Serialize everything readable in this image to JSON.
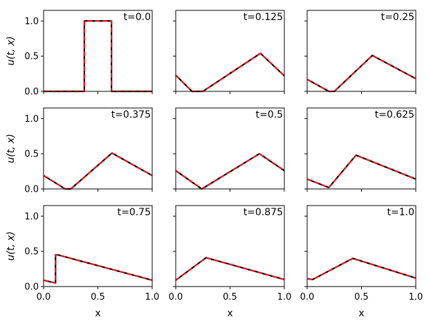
{
  "chart_data": {
    "type": "line",
    "layout": "3x3 grid of subplots, shared x and y axes",
    "xlabel": "x",
    "ylabel": "u(t, x)",
    "xlim": [
      0.0,
      1.0
    ],
    "ylim": [
      0.0,
      1.15
    ],
    "xticks": [
      "0.0",
      "0.5",
      "1.0"
    ],
    "yticks": [
      "0.0",
      "0.5",
      "1.0"
    ],
    "grid": false,
    "series_styles": [
      {
        "role": "solid black line",
        "color": "#000000"
      },
      {
        "role": "dashed red line",
        "color": "#e8141a"
      }
    ],
    "panels": [
      {
        "title": "t=0.0",
        "x": [
          0.0,
          0.375,
          0.375,
          0.625,
          0.625,
          1.0
        ],
        "y": [
          0.0,
          0.0,
          1.0,
          1.0,
          0.0,
          0.0
        ]
      },
      {
        "title": "t=0.125",
        "x": [
          0.0,
          0.15,
          0.25,
          0.78,
          1.0
        ],
        "y": [
          0.23,
          0.0,
          0.0,
          0.54,
          0.22
        ]
      },
      {
        "title": "t=0.25",
        "x": [
          0.0,
          0.2,
          0.25,
          0.6,
          1.0
        ],
        "y": [
          0.17,
          0.0,
          0.0,
          0.51,
          0.18
        ]
      },
      {
        "title": "t=0.375",
        "x": [
          0.0,
          0.2,
          0.25,
          0.63,
          1.0
        ],
        "y": [
          0.19,
          0.0,
          0.0,
          0.51,
          0.19
        ]
      },
      {
        "title": "t=0.5",
        "x": [
          0.0,
          0.24,
          0.77,
          1.0
        ],
        "y": [
          0.26,
          0.0,
          0.5,
          0.26
        ]
      },
      {
        "title": "t=0.625",
        "x": [
          0.0,
          0.2,
          0.45,
          1.0
        ],
        "y": [
          0.14,
          0.02,
          0.48,
          0.14
        ]
      },
      {
        "title": "t=0.75",
        "x": [
          0.0,
          0.11,
          0.11,
          0.13,
          1.0
        ],
        "y": [
          0.09,
          0.05,
          0.45,
          0.45,
          0.09
        ]
      },
      {
        "title": "t=0.875",
        "x": [
          0.0,
          0.28,
          1.0
        ],
        "y": [
          0.09,
          0.41,
          0.1
        ]
      },
      {
        "title": "t=1.0",
        "x": [
          0.0,
          0.05,
          0.42,
          1.0
        ],
        "y": [
          0.11,
          0.1,
          0.4,
          0.12
        ]
      }
    ]
  }
}
